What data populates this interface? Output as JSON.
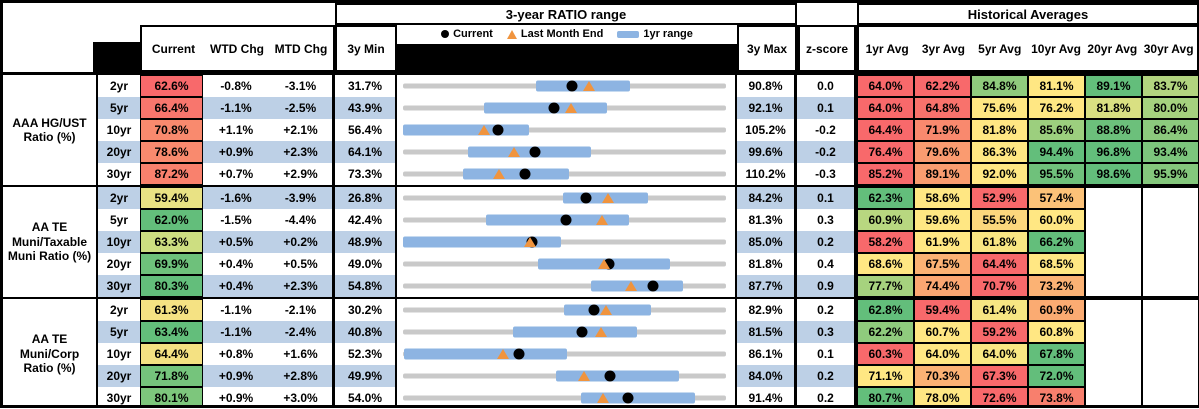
{
  "header": {
    "range_title": "3-year RATIO range",
    "hist_title": "Historical Averages",
    "col_current": "Current",
    "col_wtd": "WTD Chg",
    "col_mtd": "MTD Chg",
    "col_min": "3y Min",
    "col_max": "3y Max",
    "col_z": "z-score",
    "avg_cols": [
      "1yr Avg",
      "3yr Avg",
      "5yr Avg",
      "10yr Avg",
      "20yr Avg",
      "30yr Avg"
    ],
    "legend": [
      {
        "label": "Current",
        "marker": "dot"
      },
      {
        "label": "Last Month End",
        "marker": "triangle"
      },
      {
        "label": "1yr range",
        "marker": "bar"
      }
    ]
  },
  "colors": {
    "banding": "#bdd0e6",
    "range_bar": "#8db4e2",
    "track": "#c9c9c9",
    "current_marker": "#000000",
    "last_month_marker": "#f0943e",
    "heat_red": "#f8696b",
    "heat_yellow": "#ffe783",
    "heat_green": "#63be7b"
  },
  "chart_data": {
    "type": "table",
    "title": "3-year RATIO range",
    "groups": [
      {
        "label": "AAA HG/UST Ratio (%)",
        "rows": [
          {
            "tenor": "2yr",
            "current": "62.6%",
            "current_bg": "#f8696b",
            "wtd": "-0.8%",
            "mtd": "-3.1%",
            "z": "0.0",
            "range": {
              "min": 31.7,
              "max": 90.8,
              "lo": 56.0,
              "hi": 73.2,
              "cur": 62.6,
              "lme": 65.7
            },
            "avgs": [
              {
                "v": "64.0%",
                "bg": "#f8696b"
              },
              {
                "v": "62.2%",
                "bg": "#f8696b"
              },
              {
                "v": "84.8%",
                "bg": "#8fcb7d"
              },
              {
                "v": "81.1%",
                "bg": "#ffe783"
              },
              {
                "v": "89.1%",
                "bg": "#63be7b"
              },
              {
                "v": "83.7%",
                "bg": "#b2d47f"
              }
            ]
          },
          {
            "tenor": "5yr",
            "current": "66.4%",
            "current_bg": "#f8766d",
            "wtd": "-1.1%",
            "mtd": "-2.5%",
            "z": "0.1",
            "range": {
              "min": 43.9,
              "max": 92.1,
              "lo": 56.0,
              "hi": 74.3,
              "cur": 66.4,
              "lme": 68.9
            },
            "avgs": [
              {
                "v": "64.0%",
                "bg": "#f8696b"
              },
              {
                "v": "64.8%",
                "bg": "#f8726c"
              },
              {
                "v": "75.6%",
                "bg": "#ffe783"
              },
              {
                "v": "76.2%",
                "bg": "#ffe783"
              },
              {
                "v": "81.8%",
                "bg": "#d9e082"
              },
              {
                "v": "80.0%",
                "bg": "#a5d17e"
              }
            ]
          },
          {
            "tenor": "10yr",
            "current": "70.8%",
            "current_bg": "#f98a6e",
            "wtd": "+1.1%",
            "mtd": "+2.1%",
            "z": "-0.2",
            "range": {
              "min": 56.4,
              "max": 105.2,
              "lo": 56.4,
              "hi": 75.5,
              "cur": 70.8,
              "lme": 68.7
            },
            "avgs": [
              {
                "v": "64.4%",
                "bg": "#f8696b"
              },
              {
                "v": "71.9%",
                "bg": "#f9896e"
              },
              {
                "v": "81.8%",
                "bg": "#ffe783"
              },
              {
                "v": "85.6%",
                "bg": "#9ccf7e"
              },
              {
                "v": "88.8%",
                "bg": "#6cc07b"
              },
              {
                "v": "86.4%",
                "bg": "#8cca7d"
              }
            ]
          },
          {
            "tenor": "20yr",
            "current": "78.6%",
            "current_bg": "#f98a6e",
            "wtd": "+0.9%",
            "mtd": "+2.3%",
            "z": "-0.2",
            "range": {
              "min": 64.1,
              "max": 99.6,
              "lo": 71.2,
              "hi": 84.8,
              "cur": 78.6,
              "lme": 76.3
            },
            "avgs": [
              {
                "v": "76.4%",
                "bg": "#f8696b"
              },
              {
                "v": "79.6%",
                "bg": "#fa9b70"
              },
              {
                "v": "86.3%",
                "bg": "#ffe783"
              },
              {
                "v": "94.4%",
                "bg": "#63be7b"
              },
              {
                "v": "96.8%",
                "bg": "#63be7b"
              },
              {
                "v": "93.4%",
                "bg": "#7cc57c"
              }
            ]
          },
          {
            "tenor": "30yr",
            "current": "87.2%",
            "current_bg": "#f9816d",
            "wtd": "+0.7%",
            "mtd": "+2.9%",
            "z": "-0.3",
            "range": {
              "min": 73.3,
              "max": 110.2,
              "lo": 80.1,
              "hi": 92.3,
              "cur": 87.2,
              "lme": 84.3
            },
            "avgs": [
              {
                "v": "85.2%",
                "bg": "#f8696b"
              },
              {
                "v": "89.1%",
                "bg": "#fa9d70"
              },
              {
                "v": "92.0%",
                "bg": "#ffe783"
              },
              {
                "v": "95.5%",
                "bg": "#6fc17b"
              },
              {
                "v": "98.6%",
                "bg": "#63be7b"
              },
              {
                "v": "95.9%",
                "bg": "#84c77c"
              }
            ]
          }
        ]
      },
      {
        "label": "AA TE Muni/Taxable Muni Ratio (%)",
        "rows": [
          {
            "tenor": "2yr",
            "current": "59.4%",
            "current_bg": "#e9e284",
            "wtd": "-1.6%",
            "mtd": "-3.9%",
            "z": "0.1",
            "range": {
              "min": 26.8,
              "max": 84.2,
              "lo": 55.3,
              "hi": 70.3,
              "cur": 59.4,
              "lme": 63.3
            },
            "avgs": [
              {
                "v": "62.3%",
                "bg": "#63be7b"
              },
              {
                "v": "58.6%",
                "bg": "#ffe783"
              },
              {
                "v": "52.9%",
                "bg": "#f8696b"
              },
              {
                "v": "57.4%",
                "bg": "#fcc278"
              }
            ]
          },
          {
            "tenor": "5yr",
            "current": "62.0%",
            "current_bg": "#63be7b",
            "wtd": "-1.5%",
            "mtd": "-4.4%",
            "z": "0.3",
            "range": {
              "min": 42.4,
              "max": 81.3,
              "lo": 52.4,
              "hi": 69.6,
              "cur": 62.0,
              "lme": 66.4
            },
            "avgs": [
              {
                "v": "60.9%",
                "bg": "#b8d780"
              },
              {
                "v": "59.6%",
                "bg": "#ffe783"
              },
              {
                "v": "55.5%",
                "bg": "#fcd77d"
              },
              {
                "v": "60.0%",
                "bg": "#ffe783"
              }
            ]
          },
          {
            "tenor": "10yr",
            "current": "63.3%",
            "current_bg": "#cdde81",
            "wtd": "+0.5%",
            "mtd": "+0.2%",
            "z": "0.2",
            "range": {
              "min": 48.9,
              "max": 85.0,
              "lo": 48.9,
              "hi": 66.6,
              "cur": 63.3,
              "lme": 63.1
            },
            "avgs": [
              {
                "v": "58.2%",
                "bg": "#f8696b"
              },
              {
                "v": "61.9%",
                "bg": "#ffe783"
              },
              {
                "v": "61.8%",
                "bg": "#f9e683"
              },
              {
                "v": "66.2%",
                "bg": "#63be7b"
              }
            ]
          },
          {
            "tenor": "20yr",
            "current": "69.9%",
            "current_bg": "#6ec17b",
            "wtd": "+0.4%",
            "mtd": "+0.5%",
            "z": "0.4",
            "range": {
              "min": 49.0,
              "max": 81.8,
              "lo": 62.7,
              "hi": 76.1,
              "cur": 69.9,
              "lme": 69.4
            },
            "avgs": [
              {
                "v": "68.6%",
                "bg": "#ffe783"
              },
              {
                "v": "67.5%",
                "bg": "#fbb274"
              },
              {
                "v": "64.4%",
                "bg": "#f8696b"
              },
              {
                "v": "68.5%",
                "bg": "#ffe783"
              }
            ]
          },
          {
            "tenor": "30yr",
            "current": "80.3%",
            "current_bg": "#63be7b",
            "wtd": "+0.4%",
            "mtd": "+2.3%",
            "z": "0.9",
            "range": {
              "min": 54.8,
              "max": 87.7,
              "lo": 74.0,
              "hi": 83.3,
              "cur": 80.3,
              "lme": 78.0
            },
            "avgs": [
              {
                "v": "77.7%",
                "bg": "#a6d27e"
              },
              {
                "v": "74.4%",
                "bg": "#fba772"
              },
              {
                "v": "70.7%",
                "bg": "#f8696b"
              },
              {
                "v": "73.2%",
                "bg": "#fbb274"
              }
            ]
          }
        ]
      },
      {
        "label": "AA TE Muni/Corp Ratio (%)",
        "rows": [
          {
            "tenor": "2yr",
            "current": "61.3%",
            "current_bg": "#f5e283",
            "wtd": "-1.1%",
            "mtd": "-2.1%",
            "z": "0.2",
            "range": {
              "min": 30.2,
              "max": 82.9,
              "lo": 56.4,
              "hi": 70.6,
              "cur": 61.3,
              "lme": 63.4
            },
            "avgs": [
              {
                "v": "62.8%",
                "bg": "#63be7b"
              },
              {
                "v": "59.4%",
                "bg": "#f8696b"
              },
              {
                "v": "61.4%",
                "bg": "#f7e683"
              },
              {
                "v": "60.9%",
                "bg": "#fbab72"
              }
            ]
          },
          {
            "tenor": "5yr",
            "current": "63.4%",
            "current_bg": "#63be7b",
            "wtd": "-1.1%",
            "mtd": "-2.4%",
            "z": "0.3",
            "range": {
              "min": 40.8,
              "max": 81.5,
              "lo": 54.6,
              "hi": 70.3,
              "cur": 63.4,
              "lme": 65.8
            },
            "avgs": [
              {
                "v": "62.2%",
                "bg": "#8fcb7d"
              },
              {
                "v": "60.7%",
                "bg": "#ffe783"
              },
              {
                "v": "59.2%",
                "bg": "#f8696b"
              },
              {
                "v": "60.8%",
                "bg": "#ffe783"
              }
            ]
          },
          {
            "tenor": "10yr",
            "current": "64.4%",
            "current_bg": "#f4e182",
            "wtd": "+0.8%",
            "mtd": "+1.6%",
            "z": "0.1",
            "range": {
              "min": 52.3,
              "max": 86.1,
              "lo": 52.4,
              "hi": 69.5,
              "cur": 64.4,
              "lme": 62.8
            },
            "avgs": [
              {
                "v": "60.3%",
                "bg": "#f8696b"
              },
              {
                "v": "64.0%",
                "bg": "#ffe783"
              },
              {
                "v": "64.0%",
                "bg": "#f9e783"
              },
              {
                "v": "67.8%",
                "bg": "#63be7b"
              }
            ]
          },
          {
            "tenor": "20yr",
            "current": "71.8%",
            "current_bg": "#75c47c",
            "wtd": "+0.9%",
            "mtd": "+2.8%",
            "z": "0.2",
            "range": {
              "min": 49.9,
              "max": 84.0,
              "lo": 66.1,
              "hi": 79.0,
              "cur": 71.8,
              "lme": 69.0
            },
            "avgs": [
              {
                "v": "71.1%",
                "bg": "#ffe783"
              },
              {
                "v": "70.3%",
                "bg": "#fbb274"
              },
              {
                "v": "67.3%",
                "bg": "#f8696b"
              },
              {
                "v": "72.0%",
                "bg": "#63be7b"
              }
            ]
          },
          {
            "tenor": "30yr",
            "current": "80.1%",
            "current_bg": "#7dc67c",
            "wtd": "+0.9%",
            "mtd": "+3.0%",
            "z": "0.2",
            "range": {
              "min": 54.0,
              "max": 91.4,
              "lo": 74.6,
              "hi": 87.8,
              "cur": 80.1,
              "lme": 77.1
            },
            "avgs": [
              {
                "v": "80.7%",
                "bg": "#63be7b"
              },
              {
                "v": "78.0%",
                "bg": "#ffe783"
              },
              {
                "v": "72.6%",
                "bg": "#f8696b"
              },
              {
                "v": "73.8%",
                "bg": "#f87f6d"
              }
            ]
          }
        ]
      }
    ]
  }
}
